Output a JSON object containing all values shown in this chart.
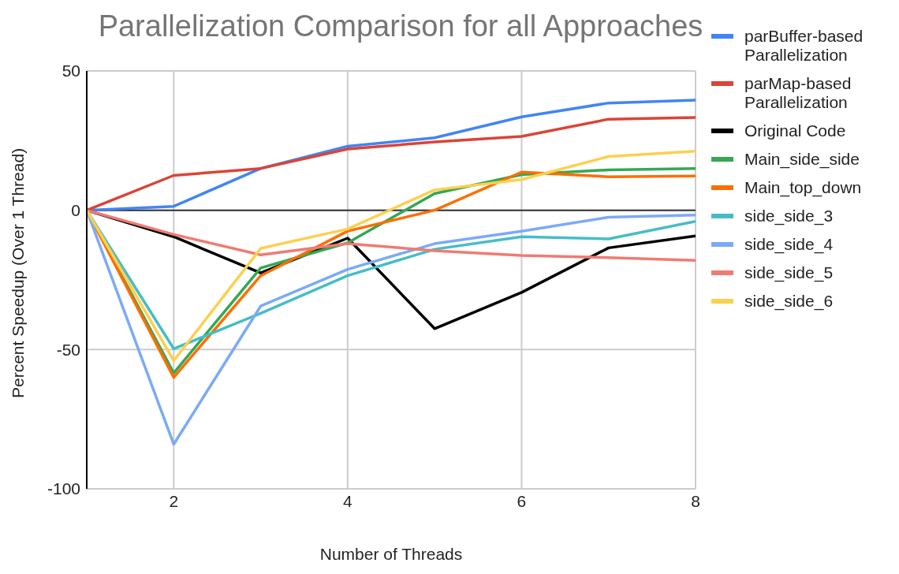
{
  "chart_data": {
    "type": "line",
    "title": "Parallelization Comparison for all Approaches",
    "xlabel": "Number of Threads",
    "ylabel": "Percent Speedup (Over 1 Thread)",
    "x": [
      1,
      2,
      3,
      4,
      5,
      6,
      7,
      8
    ],
    "series": [
      {
        "name": "parBuffer-based Parallelization",
        "color": "#4285f4",
        "values": [
          0,
          1.4,
          15,
          23,
          26,
          33.5,
          38.5,
          39.5
        ]
      },
      {
        "name": "parMap-based Parallelization",
        "color": "#db4437",
        "values": [
          0,
          12.5,
          15,
          22,
          24.5,
          26.5,
          32.7,
          33.3
        ]
      },
      {
        "name": "Original Code",
        "color": "#000000",
        "values": [
          0,
          -9.5,
          -22.5,
          -10,
          -42.5,
          -29.5,
          -13.5,
          -9.2
        ]
      },
      {
        "name": "Main_side_side",
        "color": "#34a853",
        "values": [
          0,
          -58.4,
          -20.7,
          -11.7,
          6,
          12.8,
          14.5,
          15
        ]
      },
      {
        "name": "Main_top_down",
        "color": "#ff6d01",
        "values": [
          0,
          -60,
          -23.5,
          -7.5,
          0,
          13.7,
          12,
          12.3
        ]
      },
      {
        "name": "side_side_3",
        "color": "#46bdc6",
        "values": [
          0,
          -49.7,
          -37,
          -23.5,
          -14,
          -9.5,
          -10.3,
          -4
        ]
      },
      {
        "name": "side_side_4",
        "color": "#7baaf7",
        "values": [
          0,
          -84,
          -34.4,
          -21.2,
          -12,
          -7.5,
          -2.5,
          -1.7
        ]
      },
      {
        "name": "side_side_5",
        "color": "#f07b72",
        "values": [
          0,
          -8.7,
          -16,
          -12,
          -14.5,
          -16.2,
          -17,
          -18
        ]
      },
      {
        "name": "side_side_6",
        "color": "#fcd04f",
        "values": [
          0,
          -54,
          -13.7,
          -6.7,
          7.3,
          11,
          19.3,
          21.2
        ]
      }
    ],
    "xlim": [
      1,
      8
    ],
    "xticks": [
      2,
      4,
      6,
      8
    ],
    "ylim": [
      -100,
      50
    ],
    "yticks": [
      -100,
      -50,
      0,
      50
    ],
    "ref_lines": [
      {
        "axis": "y",
        "value": 0,
        "color": "#333333"
      }
    ],
    "grid": true,
    "legend": "right",
    "marker": "none",
    "line_style": "solid"
  }
}
